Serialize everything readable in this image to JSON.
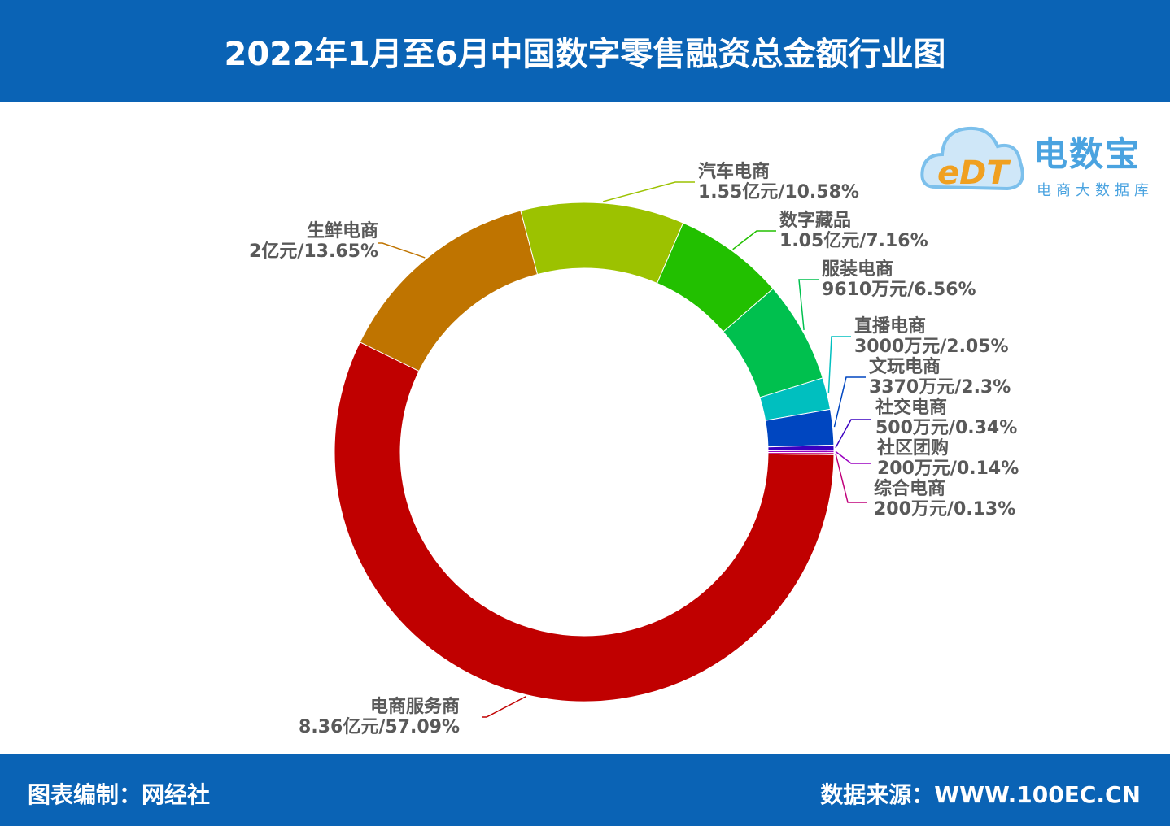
{
  "title": "2022年1月至6月中国数字零售融资总金额行业图",
  "footer": {
    "left": "图表编制：网经社",
    "right": "数据来源：WWW.100EC.CN"
  },
  "logo": {
    "mark": "eDT",
    "name": "电数宝",
    "sub": "电商大数据库",
    "icon": "cloud-icon"
  },
  "chart_data": {
    "type": "pie",
    "variant": "donut",
    "title": "2022年1月至6月中国数字零售融资总金额行业图",
    "slices": [
      {
        "name": "电商服务商",
        "amount": "8.36亿元",
        "percent": 57.09,
        "label": "8.36亿元/57.09%",
        "color": "#c00000"
      },
      {
        "name": "生鲜电商",
        "amount": "2亿元",
        "percent": 13.65,
        "label": "2亿元/13.65%",
        "color": "#bf7400"
      },
      {
        "name": "汽车电商",
        "amount": "1.55亿元",
        "percent": 10.58,
        "label": "1.55亿元/10.58%",
        "color": "#9cc200"
      },
      {
        "name": "数字藏品",
        "amount": "1.05亿元",
        "percent": 7.16,
        "label": "1.05亿元/7.16%",
        "color": "#22c000"
      },
      {
        "name": "服装电商",
        "amount": "9610万元",
        "percent": 6.56,
        "label": "9610万元/6.56%",
        "color": "#00c04e"
      },
      {
        "name": "直播电商",
        "amount": "3000万元",
        "percent": 2.05,
        "label": "3000万元/2.05%",
        "color": "#00bfbf"
      },
      {
        "name": "文玩电商",
        "amount": "3370万元",
        "percent": 2.3,
        "label": "3370万元/2.3%",
        "color": "#0046c0"
      },
      {
        "name": "社交电商",
        "amount": "500万元",
        "percent": 0.34,
        "label": "500万元/0.34%",
        "color": "#3a00c0"
      },
      {
        "name": "社区团购",
        "amount": "200万元",
        "percent": 0.14,
        "label": "200万元/0.14%",
        "color": "#9a00c0"
      },
      {
        "name": "综合电商",
        "amount": "200万元",
        "percent": 0.13,
        "label": "200万元/0.13%",
        "color": "#c0007a"
      }
    ]
  }
}
